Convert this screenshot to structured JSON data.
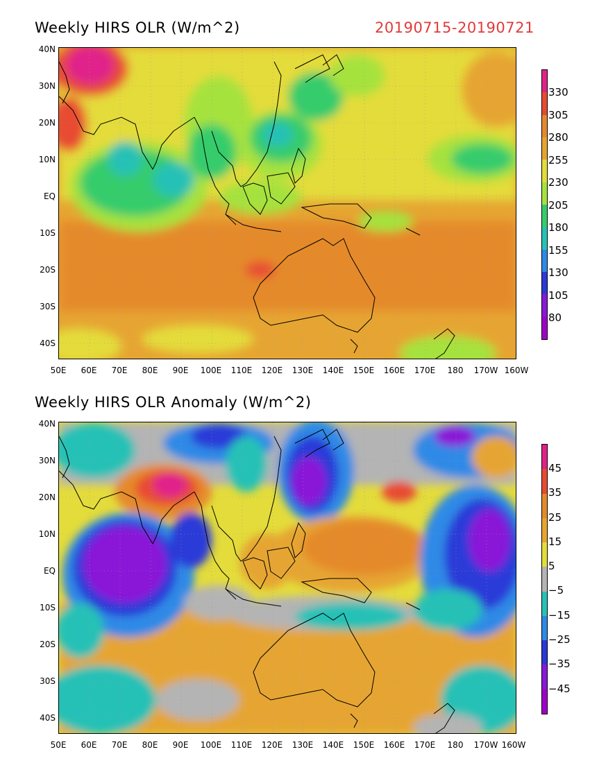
{
  "panels": [
    {
      "title": "Weekly HIRS OLR (W/m^2)",
      "date_range": "20190715-20190721",
      "colorbar": {
        "labels": [
          "330",
          "305",
          "280",
          "255",
          "230",
          "205",
          "180",
          "155",
          "130",
          "105",
          "80"
        ],
        "colors": [
          "#e0228a",
          "#e84b30",
          "#e58a2c",
          "#e6a532",
          "#e4dc3a",
          "#a6e23e",
          "#35cc6c",
          "#27c1b6",
          "#2f8ae6",
          "#2a3ad8",
          "#8a18d8",
          "#a000c8"
        ]
      },
      "x_ticks": [
        "50E",
        "60E",
        "70E",
        "80E",
        "90E",
        "100E",
        "110E",
        "120E",
        "130E",
        "140E",
        "150E",
        "160E",
        "170E",
        "180",
        "170W",
        "160W"
      ],
      "y_ticks": [
        "40N",
        "30N",
        "20N",
        "10N",
        "EQ",
        "10S",
        "20S",
        "30S",
        "40S"
      ]
    },
    {
      "title": "Weekly HIRS OLR Anomaly (W/m^2)",
      "colorbar": {
        "labels": [
          "45",
          "35",
          "25",
          "15",
          "5",
          "−5",
          "−15",
          "−25",
          "−35",
          "−45"
        ],
        "colors": [
          "#e0228a",
          "#e84b30",
          "#e58a2c",
          "#e6a532",
          "#e4dc3a",
          "#b4b4b4",
          "#27c1b6",
          "#2f8ae6",
          "#2a3ad8",
          "#8a18d8",
          "#a000c8"
        ]
      },
      "x_ticks": [
        "50E",
        "60E",
        "70E",
        "80E",
        "90E",
        "100E",
        "110E",
        "120E",
        "130E",
        "140E",
        "150E",
        "160E",
        "170E",
        "180",
        "170W",
        "160W"
      ],
      "y_ticks": [
        "40N",
        "30N",
        "20N",
        "10N",
        "EQ",
        "10S",
        "20S",
        "30S",
        "40S"
      ]
    }
  ]
}
